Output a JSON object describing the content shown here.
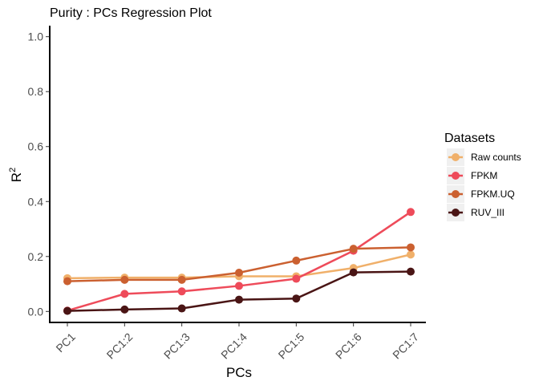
{
  "chart_data": {
    "type": "line",
    "title": "Purity : PCs Regression Plot",
    "xlabel": "PCs",
    "ylabel": "R",
    "ylabel_superscript": "2",
    "categories": [
      "PC1",
      "PC1:2",
      "PC1:3",
      "PC1:4",
      "PC1:5",
      "PC1:6",
      "PC1:7"
    ],
    "ylim": [
      -0.04,
      1.04
    ],
    "yticks": [
      0.0,
      0.2,
      0.4,
      0.6,
      0.8,
      1.0
    ],
    "ytick_labels": [
      "0.0",
      "0.2",
      "0.4",
      "0.6",
      "0.8",
      "1.0"
    ],
    "grid": false,
    "legend": {
      "title": "Datasets",
      "position": "right"
    },
    "series": [
      {
        "name": "Raw counts",
        "color": "#F0B06A",
        "values": [
          0.121,
          0.123,
          0.123,
          0.128,
          0.128,
          0.158,
          0.207
        ]
      },
      {
        "name": "FPKM",
        "color": "#EE4B5A",
        "values": [
          0.003,
          0.064,
          0.073,
          0.093,
          0.119,
          0.221,
          0.362
        ]
      },
      {
        "name": "FPKM.UQ",
        "color": "#CB6030",
        "values": [
          0.11,
          0.115,
          0.115,
          0.141,
          0.185,
          0.228,
          0.233
        ]
      },
      {
        "name": "RUV_III",
        "color": "#4A1515",
        "values": [
          0.002,
          0.007,
          0.011,
          0.043,
          0.047,
          0.142,
          0.145
        ]
      }
    ]
  }
}
